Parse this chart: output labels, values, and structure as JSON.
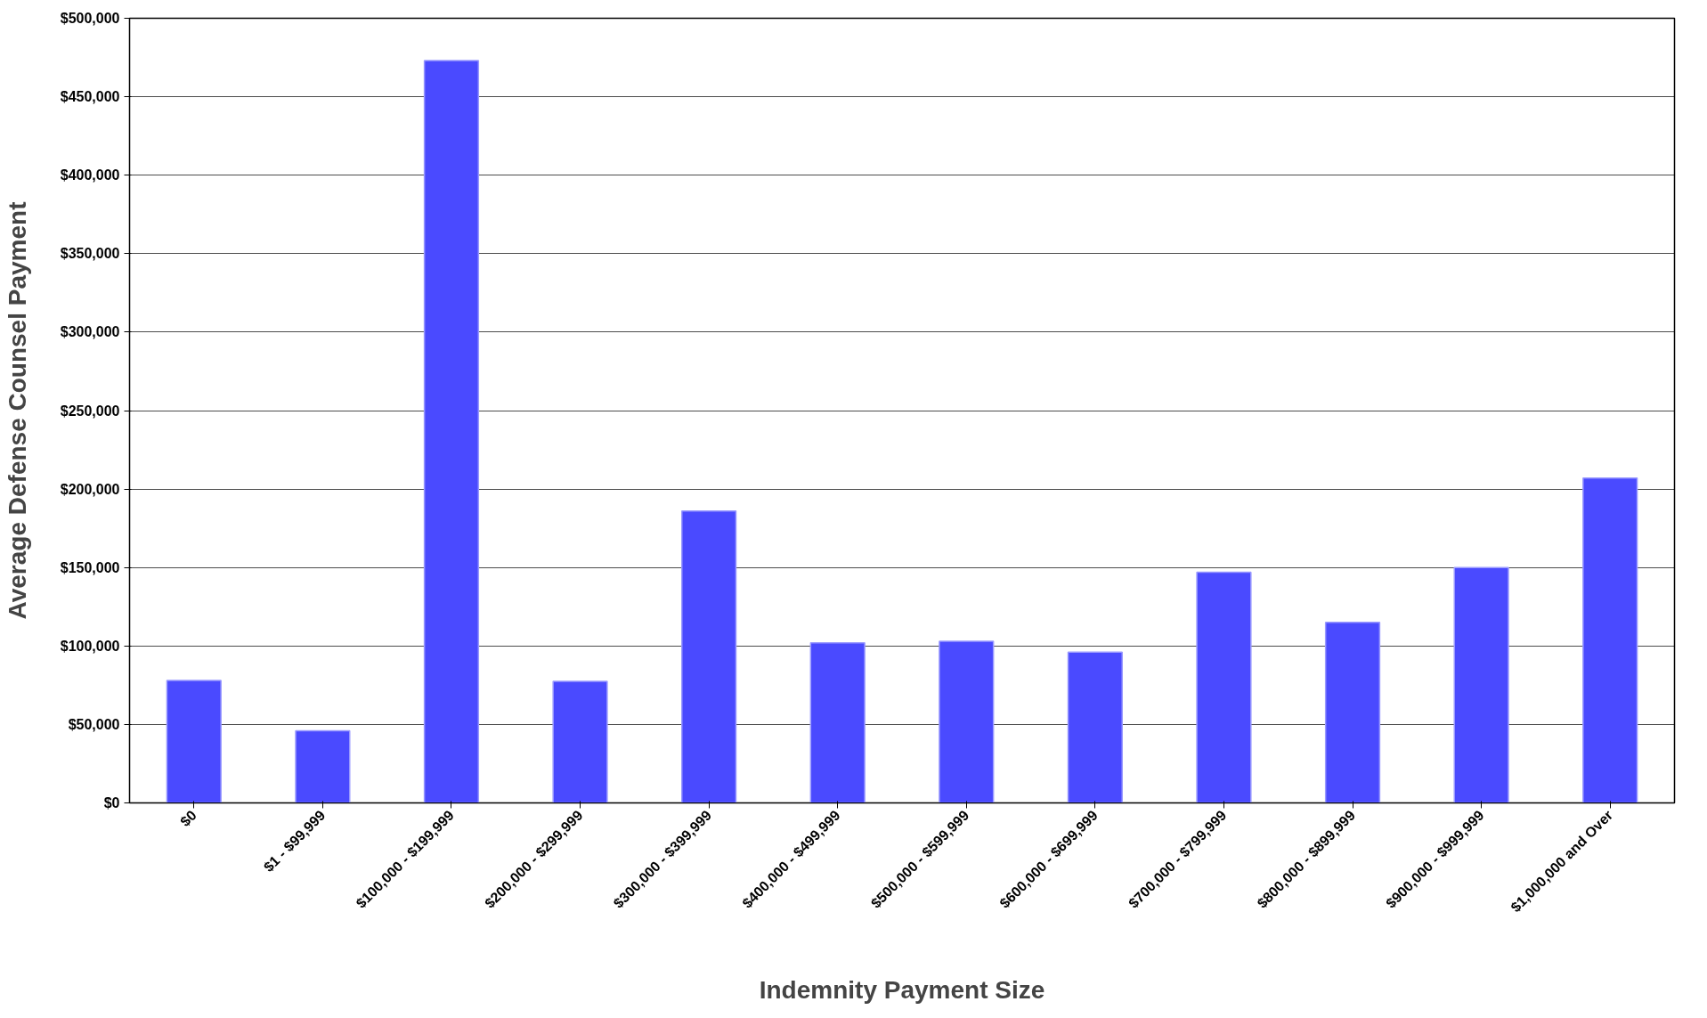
{
  "chart_data": {
    "type": "bar",
    "xlabel": "Indemnity Payment Size",
    "ylabel": "Average Defense Counsel Payment",
    "categories": [
      "$0",
      "$1 - $99,999",
      "$100,000 - $199,999",
      "$200,000 - $299,999",
      "$300,000 - $399,999",
      "$400,000 - $499,999",
      "$500,000 - $599,999",
      "$600,000 - $699,999",
      "$700,000 - $799,999",
      "$800,000 - $899,999",
      "$900,000 - $999,999",
      "$1,000,000 and Over"
    ],
    "values": [
      78000,
      46000,
      473000,
      77500,
      186000,
      102000,
      103000,
      96000,
      147000,
      115000,
      150000,
      207000
    ],
    "color": "#4a4aff",
    "ylim": [
      0,
      500000
    ],
    "yticks": [
      {
        "value": 0,
        "label": "$0"
      },
      {
        "value": 50000,
        "label": "$50,000"
      },
      {
        "value": 100000,
        "label": "$100,000"
      },
      {
        "value": 150000,
        "label": "$150,000"
      },
      {
        "value": 200000,
        "label": "$200,000"
      },
      {
        "value": 250000,
        "label": "$250,000"
      },
      {
        "value": 300000,
        "label": "$300,000"
      },
      {
        "value": 350000,
        "label": "$350,000"
      },
      {
        "value": 400000,
        "label": "$400,000"
      },
      {
        "value": 450000,
        "label": "$450,000"
      },
      {
        "value": 500000,
        "label": "$500,000"
      }
    ],
    "grid": "y"
  }
}
